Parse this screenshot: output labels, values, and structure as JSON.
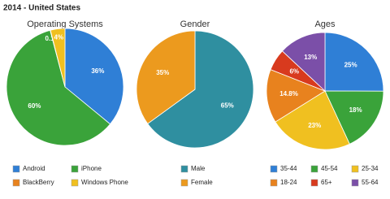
{
  "title": "2014 - United States",
  "chart_data": [
    {
      "type": "pie",
      "title": "Operating Systems",
      "categories": [
        "Android",
        "iPhone",
        "BlackBerry",
        "Windows Phone"
      ],
      "values": [
        36,
        60,
        0.1,
        4
      ],
      "value_labels": [
        "36%",
        "60%",
        "0.1%",
        "4%"
      ],
      "colors": [
        "#2f7fd6",
        "#3aa33a",
        "#e8821e",
        "#f0c020"
      ]
    },
    {
      "type": "pie",
      "title": "Gender",
      "categories": [
        "Male",
        "Female"
      ],
      "values": [
        65,
        35
      ],
      "value_labels": [
        "65%",
        "35%"
      ],
      "colors": [
        "#2f8fa0",
        "#ec9a1e"
      ]
    },
    {
      "type": "pie",
      "title": "Ages",
      "categories": [
        "35-44",
        "45-54",
        "25-34",
        "18-24",
        "65+",
        "55-64"
      ],
      "values": [
        25,
        18,
        23,
        14.8,
        6,
        13
      ],
      "value_labels": [
        "25%",
        "18%",
        "23%",
        "14.8%",
        "6%",
        "13%"
      ],
      "colors": [
        "#2f7fd6",
        "#3aa33a",
        "#f0c020",
        "#e8821e",
        "#d83a1e",
        "#7b4fa8"
      ]
    }
  ]
}
